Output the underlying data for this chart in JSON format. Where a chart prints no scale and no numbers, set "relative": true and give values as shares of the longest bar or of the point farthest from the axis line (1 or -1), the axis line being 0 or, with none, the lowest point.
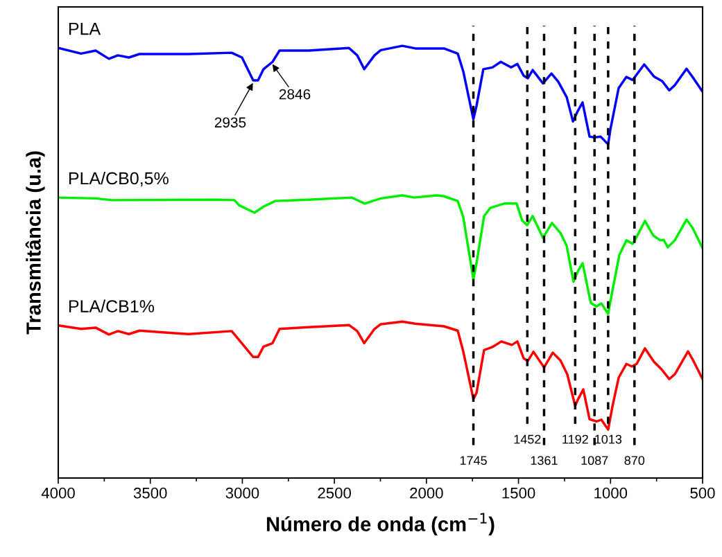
{
  "chart_data": {
    "type": "line",
    "relative": true,
    "xlabel": "Número de onda (cm$^{−1}$)",
    "ylabel": "Transmitância (u.a)",
    "xlim": [
      4000,
      500
    ],
    "xticks": [
      4000,
      3500,
      3000,
      2500,
      2000,
      1500,
      1000,
      500
    ],
    "grid": false,
    "legend": false,
    "marker": "none",
    "line_style": "solid",
    "series": [
      {
        "name": "PLA",
        "color": "#0000ff",
        "x": [
          4000,
          3876,
          3797,
          3725,
          3676,
          3616,
          3559,
          3292,
          3058,
          3002,
          2941,
          2915,
          2885,
          2836,
          2798,
          2640,
          2421,
          2376,
          2338,
          2282,
          2248,
          2131,
          2060,
          1905,
          1830,
          1800,
          1745,
          1728,
          1691,
          1642,
          1596,
          1540,
          1506,
          1472,
          1449,
          1423,
          1367,
          1321,
          1284,
          1238,
          1204,
          1178,
          1152,
          1114,
          1088,
          1054,
          1013,
          1001,
          956,
          914,
          880,
          817,
          764,
          719,
          681,
          651,
          587,
          556,
          500
        ],
        "values": [
          0.995,
          0.982,
          0.989,
          0.97,
          0.978,
          0.973,
          0.981,
          0.981,
          0.984,
          0.973,
          0.92,
          0.92,
          0.946,
          0.963,
          0.989,
          0.989,
          0.995,
          0.978,
          0.946,
          0.978,
          0.99,
          1.0,
          0.994,
          0.994,
          0.982,
          0.941,
          0.83,
          0.861,
          0.946,
          0.95,
          0.963,
          0.95,
          0.958,
          0.931,
          0.925,
          0.944,
          0.913,
          0.936,
          0.917,
          0.881,
          0.825,
          0.849,
          0.869,
          0.79,
          0.788,
          0.79,
          0.772,
          0.806,
          0.902,
          0.928,
          0.921,
          0.957,
          0.929,
          0.918,
          0.897,
          0.909,
          0.947,
          0.929,
          0.894
        ]
      },
      {
        "name": "PLA/CB0,5%",
        "color": "#00ee00",
        "x": [
          4000,
          3797,
          3710,
          3145,
          3043,
          3017,
          2934,
          2885,
          2821,
          2640,
          2406,
          2335,
          2248,
          2131,
          2067,
          1943,
          1905,
          1830,
          1800,
          1745,
          1728,
          1687,
          1653,
          1578,
          1510,
          1480,
          1453,
          1423,
          1367,
          1318,
          1272,
          1238,
          1201,
          1178,
          1152,
          1107,
          1077,
          1050,
          1013,
          990,
          952,
          914,
          880,
          858,
          813,
          768,
          730,
          711,
          689,
          651,
          587,
          556,
          500
        ],
        "values": [
          0.649,
          0.647,
          0.643,
          0.644,
          0.643,
          0.631,
          0.614,
          0.628,
          0.641,
          0.644,
          0.649,
          0.635,
          0.647,
          0.654,
          0.649,
          0.654,
          0.652,
          0.641,
          0.604,
          0.46,
          0.497,
          0.606,
          0.625,
          0.635,
          0.635,
          0.596,
          0.585,
          0.606,
          0.556,
          0.59,
          0.567,
          0.537,
          0.454,
          0.478,
          0.497,
          0.405,
          0.397,
          0.404,
          0.38,
          0.433,
          0.516,
          0.55,
          0.542,
          0.558,
          0.595,
          0.561,
          0.55,
          0.551,
          0.534,
          0.55,
          0.598,
          0.58,
          0.532
        ]
      },
      {
        "name": "PLA/CB1%",
        "color": "#ff0000",
        "x": [
          4000,
          3876,
          3797,
          3725,
          3676,
          3616,
          3559,
          3292,
          3058,
          2941,
          2915,
          2885,
          2836,
          2798,
          2640,
          2421,
          2376,
          2338,
          2282,
          2248,
          2131,
          2060,
          1905,
          1830,
          1800,
          1745,
          1728,
          1687,
          1642,
          1593,
          1536,
          1506,
          1472,
          1449,
          1419,
          1361,
          1314,
          1272,
          1235,
          1192,
          1178,
          1148,
          1114,
          1077,
          1050,
          1013,
          990,
          956,
          914,
          884,
          858,
          813,
          764,
          726,
          681,
          651,
          579,
          556,
          500
        ],
        "values": [
          0.353,
          0.345,
          0.348,
          0.332,
          0.34,
          0.333,
          0.341,
          0.333,
          0.34,
          0.28,
          0.28,
          0.304,
          0.312,
          0.345,
          0.349,
          0.354,
          0.34,
          0.312,
          0.345,
          0.356,
          0.362,
          0.357,
          0.351,
          0.341,
          0.293,
          0.183,
          0.197,
          0.296,
          0.303,
          0.316,
          0.308,
          0.316,
          0.277,
          0.271,
          0.292,
          0.256,
          0.29,
          0.272,
          0.24,
          0.167,
          0.181,
          0.205,
          0.136,
          0.131,
          0.135,
          0.112,
          0.165,
          0.232,
          0.264,
          0.258,
          0.264,
          0.3,
          0.269,
          0.253,
          0.229,
          0.24,
          0.293,
          0.276,
          0.229
        ]
      }
    ],
    "ref_lines": [
      {
        "axis": "x",
        "value": 1745,
        "label": "1745",
        "color": "#000000",
        "line_style": "dashed"
      },
      {
        "axis": "x",
        "value": 1452,
        "label": "1452",
        "color": "#000000",
        "line_style": "dashed"
      },
      {
        "axis": "x",
        "value": 1361,
        "label": "1361",
        "color": "#000000",
        "line_style": "dashed"
      },
      {
        "axis": "x",
        "value": 1192,
        "label": "1192",
        "color": "#000000",
        "line_style": "dashed"
      },
      {
        "axis": "x",
        "value": 1087,
        "label": "1087",
        "color": "#000000",
        "line_style": "dashed"
      },
      {
        "axis": "x",
        "value": 1013,
        "label": "1013",
        "color": "#000000",
        "line_style": "dashed"
      },
      {
        "axis": "x",
        "value": 870,
        "label": "870",
        "color": "#000000",
        "line_style": "dashed"
      }
    ],
    "annotations": [
      {
        "text": "2935",
        "x": 2935,
        "y": 0.92
      },
      {
        "text": "2846",
        "x": 2846,
        "y": 0.963
      }
    ]
  }
}
